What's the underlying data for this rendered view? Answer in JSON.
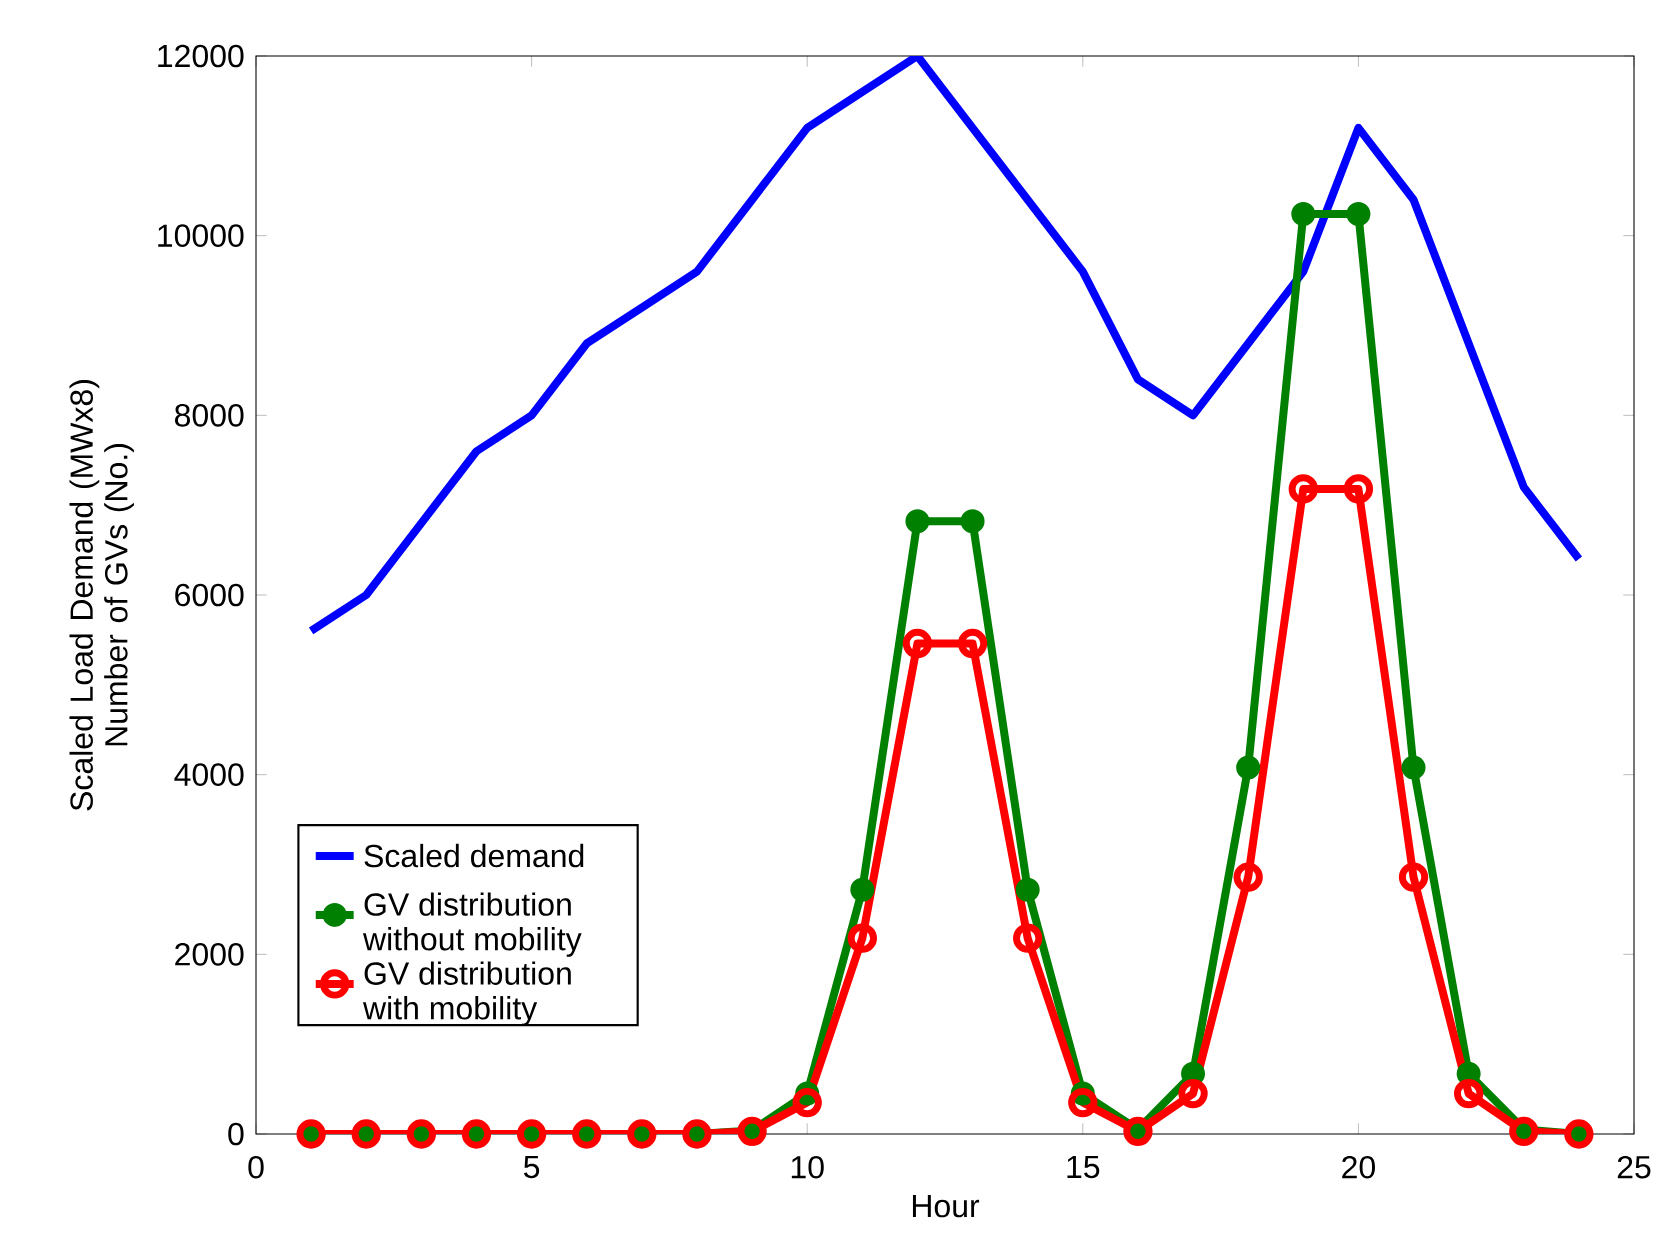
{
  "chart_data": {
    "type": "line",
    "xlabel": "Hour",
    "ylabel": "Scaled Load Demand (MWx8) Number of GVs (No.)",
    "x": [
      1,
      2,
      3,
      4,
      5,
      6,
      7,
      8,
      9,
      10,
      11,
      12,
      13,
      14,
      15,
      16,
      17,
      18,
      19,
      20,
      21,
      22,
      23,
      24
    ],
    "xlim": [
      0,
      25
    ],
    "xticks": [
      0,
      5,
      10,
      15,
      20,
      25
    ],
    "ylim": [
      0,
      12000
    ],
    "yticks": [
      0,
      2000,
      4000,
      6000,
      8000,
      10000,
      12000
    ],
    "grid": false,
    "legend": "bottom left",
    "line_style": "solid",
    "series": [
      {
        "name": "Scaled demand",
        "color": "#0000ff",
        "marker": "none",
        "values": [
          5600,
          6000,
          6800,
          7600,
          8000,
          8800,
          9200,
          9600,
          10400,
          11200,
          11600,
          12000,
          11200,
          10400,
          9600,
          8400,
          8000,
          8800,
          9600,
          11200,
          10400,
          8800,
          7200,
          6400
        ]
      },
      {
        "name": "GV distribution without mobility",
        "color": "#008000",
        "marker": "circle",
        "values": [
          0,
          0,
          0,
          0,
          0,
          0,
          0,
          0,
          40,
          450,
          2720,
          6820,
          6820,
          2720,
          450,
          50,
          670,
          4080,
          10240,
          10240,
          4080,
          670,
          50,
          0
        ]
      },
      {
        "name": "GV distribution with mobility",
        "color": "#ff0000",
        "marker": "circle",
        "values": [
          0,
          0,
          0,
          0,
          0,
          0,
          0,
          0,
          30,
          350,
          2180,
          5460,
          5460,
          2180,
          350,
          30,
          450,
          2860,
          7180,
          7180,
          2860,
          450,
          30,
          0
        ]
      }
    ]
  }
}
